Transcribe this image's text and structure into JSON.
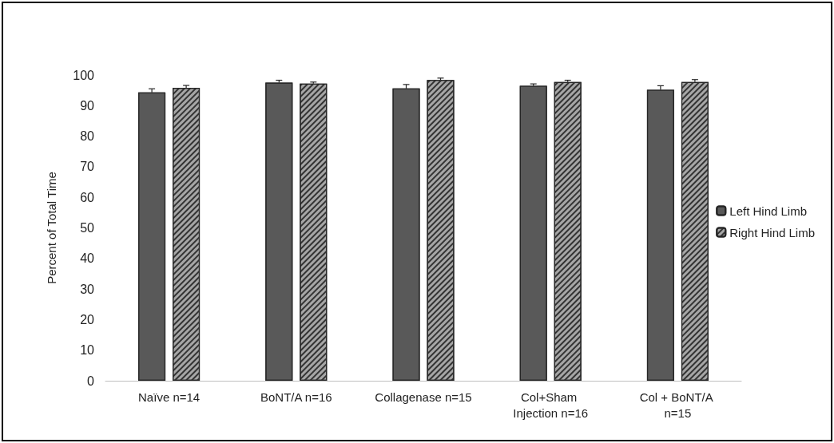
{
  "chart_data": {
    "type": "bar",
    "ylabel": "Percent of Total Time",
    "categories": [
      "Naïve n=14",
      "BoNT/A n=16",
      "Collagenase n=15",
      "Col+Sham Injection n=16",
      "Col + BoNT/A n=15"
    ],
    "series": [
      {
        "name": "Left Hind Limb",
        "color": "#595959",
        "values": [
          94.3,
          97.5,
          95.6,
          96.5,
          95.2
        ],
        "errors": [
          [
            94.3,
            95.5
          ],
          [
            97.5,
            98.3
          ],
          [
            95.6,
            96.9
          ],
          [
            96.5,
            97.1
          ],
          [
            95.2,
            96.5
          ]
        ]
      },
      {
        "name": "Right Hind Limb",
        "color": "#a6a6a6",
        "values": [
          95.8,
          97.2,
          98.4,
          97.7,
          97.7
        ],
        "errors": [
          [
            95.8,
            96.6
          ],
          [
            97.2,
            97.7
          ],
          [
            98.4,
            99.0
          ],
          [
            97.7,
            98.3
          ],
          [
            97.7,
            98.5
          ]
        ]
      }
    ],
    "ylim": [
      0,
      100
    ],
    "yticks": [
      0,
      10,
      20,
      30,
      40,
      50,
      60,
      70,
      80,
      90,
      100
    ],
    "grid": false,
    "legend": "right"
  }
}
